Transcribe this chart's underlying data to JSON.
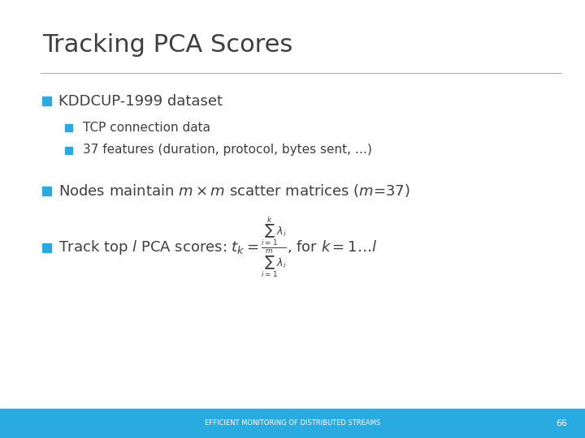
{
  "title": "Tracking PCA Scores",
  "title_color": "#3f3f3f",
  "title_fontsize": 22,
  "separator_color": "#b0b0b0",
  "bullet_color": "#29ABE2",
  "bullet1_text": "KDDCUP-1999 dataset",
  "bullet1_fontsize": 13,
  "sub_bullet1a": "TCP connection data",
  "sub_bullet1b": "37 features (duration, protocol, bytes sent, …)",
  "sub_bullet_fontsize": 11,
  "bullet2_fontsize": 13,
  "bullet3_fontsize": 13,
  "footer_text": "EFFICIENT MONITORING OF DISTRIBUTED STREAMS",
  "footer_page": "66",
  "footer_bg": "#29ABE2",
  "footer_text_color": "#ffffff",
  "footer_fontsize": 6,
  "bg_color": "#ffffff",
  "text_color": "#3f3f3f"
}
